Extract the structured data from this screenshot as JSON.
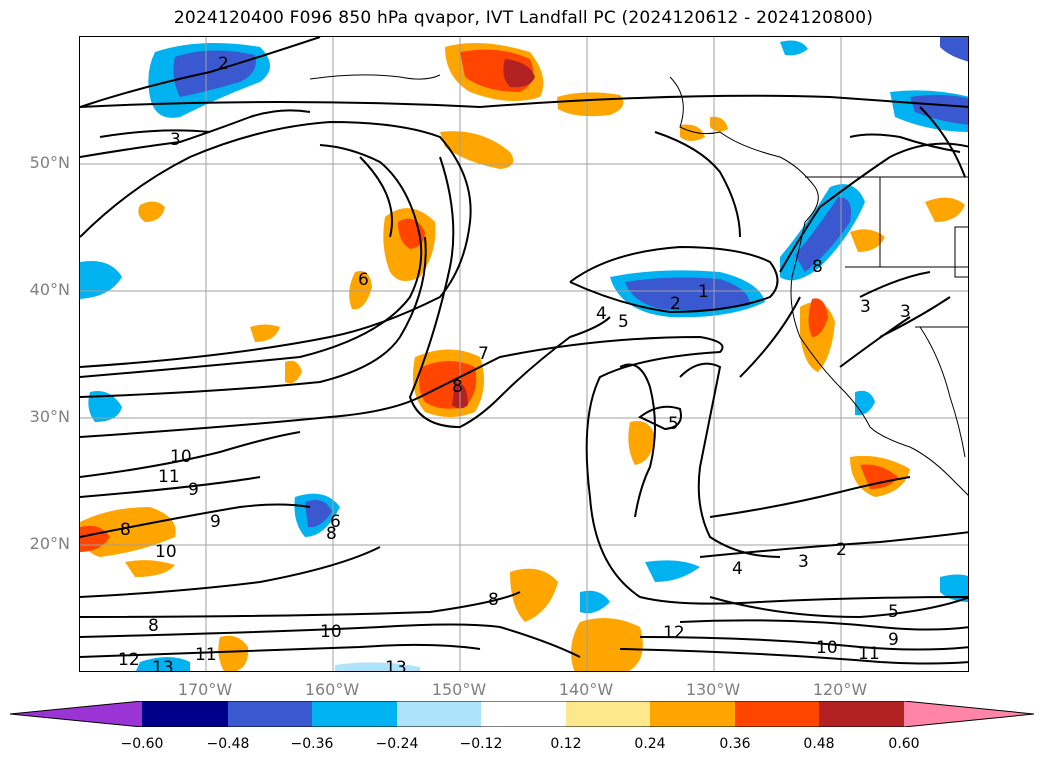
{
  "title": "2024120400 F096 850 hPa qvapor, IVT Landfall PC (2024120612 - 2024120800)",
  "lat_labels": [
    "50°N",
    "40°N",
    "30°N",
    "20°N"
  ],
  "lon_labels": [
    "170°W",
    "160°W",
    "150°W",
    "140°W",
    "130°W",
    "120°W"
  ],
  "colorbar": {
    "ticks": [
      "−0.60",
      "−0.48",
      "−0.36",
      "−0.24",
      "−0.12",
      "0.12",
      "0.24",
      "0.36",
      "0.48",
      "0.60"
    ],
    "colors": {
      "under": "#9b34d4",
      "bins": [
        "#00008b",
        "#3a58d0",
        "#00b2f0",
        "#ade3fb",
        "#ffffff",
        "#fde88b",
        "#ffa500",
        "#ff4500",
        "#b22222"
      ],
      "over": "#ff85a8"
    }
  },
  "contour_labels": [
    "2",
    "3",
    "6",
    "8",
    "7",
    "5",
    "4",
    "1",
    "2",
    "3",
    "5",
    "3",
    "8",
    "10",
    "11",
    "9",
    "8",
    "9",
    "10",
    "6",
    "8",
    "8",
    "8",
    "10",
    "12",
    "11",
    "13",
    "13",
    "12",
    "4",
    "3",
    "2",
    "10",
    "11",
    "9",
    "5"
  ],
  "icons": {
    "coastline": "coastline-lines",
    "grid": "gridlines"
  }
}
